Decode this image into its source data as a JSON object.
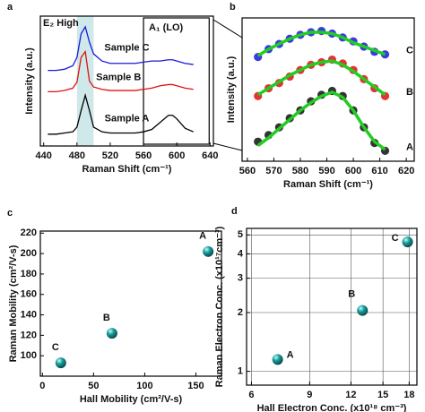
{
  "chart_data": [
    {
      "type": "line",
      "panel_label": "a",
      "x_label": "Raman Shift (cm⁻¹)",
      "y_label": "Intensity (a.u.)",
      "xlim": [
        436,
        644
      ],
      "ylim": [
        0,
        11
      ],
      "xticks": [
        440,
        480,
        520,
        560,
        600,
        640
      ],
      "highlight_xrange": [
        480,
        500
      ],
      "box_xrange": [
        560,
        640
      ],
      "annotations": [
        "E₂ High",
        "A₁ (LO)"
      ],
      "x": [
        445,
        455,
        465,
        475,
        480,
        485,
        490,
        495,
        500,
        510,
        520,
        530,
        540,
        550,
        560,
        570,
        580,
        590,
        595,
        600,
        610,
        620
      ],
      "series": [
        {
          "name": "Sample A",
          "color": "#000000",
          "values": [
            1.0,
            1.0,
            1.1,
            1.2,
            1.6,
            3.0,
            4.3,
            3.0,
            1.6,
            1.2,
            1.1,
            1.1,
            1.1,
            1.1,
            1.2,
            1.4,
            2.0,
            2.6,
            2.6,
            2.3,
            1.5,
            1.2
          ]
        },
        {
          "name": "Sample B",
          "color": "#e01010",
          "values": [
            4.6,
            4.6,
            4.7,
            4.9,
            5.4,
            7.5,
            8.0,
            5.5,
            5.0,
            4.8,
            4.7,
            4.7,
            4.7,
            4.7,
            4.8,
            4.9,
            5.1,
            5.2,
            5.2,
            5.1,
            4.9,
            4.8
          ]
        },
        {
          "name": "Sample C",
          "color": "#1a1adc",
          "values": [
            6.4,
            6.4,
            6.5,
            6.8,
            7.5,
            9.5,
            10.1,
            8.8,
            7.8,
            7.2,
            7.0,
            7.0,
            7.0,
            7.0,
            7.1,
            7.2,
            7.2,
            7.3,
            7.3,
            7.2,
            7.0,
            6.9
          ]
        }
      ]
    },
    {
      "type": "scatter",
      "panel_label": "b",
      "x_label": "Raman Shift (cm⁻¹)",
      "y_label": "Intensity (a.u.)",
      "xlim": [
        558,
        623
      ],
      "ylim": [
        0,
        11
      ],
      "xticks": [
        560,
        570,
        580,
        590,
        600,
        610,
        620
      ],
      "x": [
        564,
        568,
        572,
        576,
        580,
        584,
        588,
        592,
        596,
        600,
        604,
        608,
        612
      ],
      "series": [
        {
          "name": "A",
          "color": "#111111",
          "mode": "markers",
          "values": [
            1.5,
            2.0,
            2.6,
            3.3,
            3.9,
            4.6,
            5.1,
            5.4,
            5.0,
            3.9,
            2.6,
            1.4,
            0.8
          ]
        },
        {
          "color": "#22cc22",
          "mode": "line",
          "values": [
            1.2,
            1.8,
            2.5,
            3.2,
            3.9,
            4.5,
            5.0,
            5.3,
            4.9,
            3.9,
            2.6,
            1.5,
            0.9
          ]
        },
        {
          "name": "B",
          "color": "#e01010",
          "mode": "markers",
          "values": [
            5.0,
            5.6,
            6.0,
            6.5,
            7.0,
            7.4,
            7.6,
            7.8,
            7.5,
            7.0,
            6.3,
            5.6,
            5.0
          ]
        },
        {
          "color": "#22cc22",
          "mode": "line",
          "values": [
            5.1,
            5.6,
            6.1,
            6.6,
            7.0,
            7.4,
            7.6,
            7.7,
            7.4,
            6.9,
            6.3,
            5.7,
            5.1
          ]
        },
        {
          "name": "C",
          "color": "#1a1adc",
          "mode": "markers",
          "values": [
            8.0,
            8.6,
            9.0,
            9.4,
            9.7,
            9.9,
            10.0,
            9.8,
            9.5,
            9.2,
            8.8,
            8.4,
            8.2
          ]
        },
        {
          "color": "#22cc22",
          "mode": "line",
          "values": [
            8.1,
            8.6,
            9.0,
            9.4,
            9.7,
            9.9,
            9.9,
            9.8,
            9.5,
            9.1,
            8.8,
            8.5,
            8.2
          ]
        }
      ]
    },
    {
      "type": "scatter",
      "panel_label": "c",
      "x_label": "Hall Mobility (cm²/V-s)",
      "y_label": "Raman Mobility (cm²/V-s)",
      "xlim": [
        -2,
        175
      ],
      "ylim": [
        80,
        222
      ],
      "xticks": [
        0,
        50,
        100,
        150
      ],
      "yticks": [
        100,
        120,
        140,
        160,
        180,
        200,
        220
      ],
      "x": [
        162,
        68,
        18
      ],
      "values": [
        202,
        122,
        93
      ],
      "point_labels": [
        "A",
        "B",
        "C"
      ],
      "color": "#1a8a8a"
    },
    {
      "type": "scatter",
      "panel_label": "d",
      "x_label": "Hall Electron Conc. (x10¹⁸ cm⁻³)",
      "y_label": "Raman Electron Conc. (x10¹⁷cm⁻³)",
      "xscale": "log",
      "yscale": "log",
      "grid": true,
      "xlim": [
        5.8,
        19
      ],
      "ylim": [
        0.85,
        5.4
      ],
      "xticks": [
        6,
        9,
        12,
        15,
        18
      ],
      "yticks": [
        1,
        2,
        3,
        4,
        5
      ],
      "x": [
        7.2,
        13,
        17.8
      ],
      "values": [
        1.15,
        2.05,
        4.6
      ],
      "point_labels": [
        "A",
        "B",
        "C"
      ],
      "color": "#1a8a8a"
    }
  ]
}
